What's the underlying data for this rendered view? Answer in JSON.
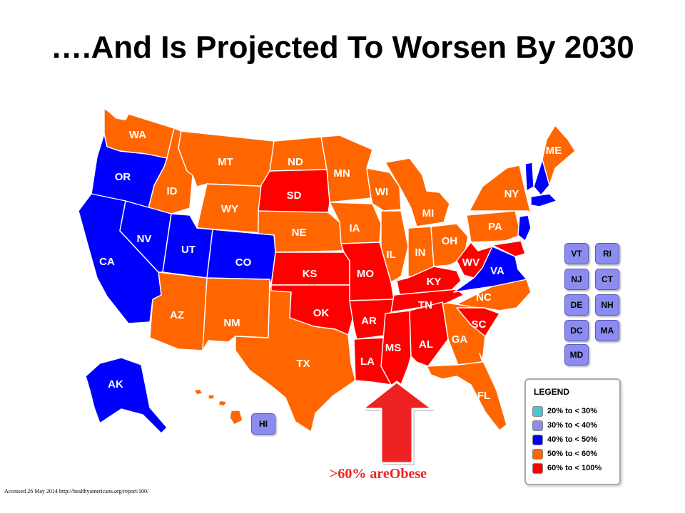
{
  "title": "….And Is Projected To Worsen By 2030",
  "colors": {
    "20_30": "#4fc4d6",
    "30_40": "#8c8cf0",
    "40_50": "#0000ff",
    "50_60": "#ff6600",
    "60_100": "#ff0000",
    "arrow": "#ee2222"
  },
  "states": {
    "WA": "WA",
    "OR": "OR",
    "CA": "CA",
    "ID": "ID",
    "NV": "NV",
    "MT": "MT",
    "WY": "WY",
    "UT": "UT",
    "AZ": "AZ",
    "CO": "CO",
    "NM": "NM",
    "ND": "ND",
    "SD": "SD",
    "NE": "NE",
    "KS": "KS",
    "OK": "OK",
    "TX": "TX",
    "MN": "MN",
    "IA": "IA",
    "MO": "MO",
    "AR": "AR",
    "LA": "LA",
    "WI": "WI",
    "IL": "IL",
    "MI": "MI",
    "IN": "IN",
    "OH": "OH",
    "KY": "KY",
    "TN": "TN",
    "MS": "MS",
    "AL": "AL",
    "GA": "GA",
    "FL": "FL",
    "SC": "SC",
    "NC": "NC",
    "VA": "VA",
    "WV": "WV",
    "PA": "PA",
    "NY": "NY",
    "ME": "ME",
    "AK": "AK"
  },
  "small_states": {
    "VT": "VT",
    "RI": "RI",
    "NJ": "NJ",
    "CT": "CT",
    "DE": "DE",
    "NH": "NH",
    "DC": "DC",
    "MA": "MA",
    "MD": "MD",
    "HI": "HI"
  },
  "legend": {
    "title": "LEGEND",
    "items": [
      {
        "label": "20% to < 30%",
        "color": "#4fc4d6"
      },
      {
        "label": "30% to < 40%",
        "color": "#8c8cf0"
      },
      {
        "label": "40% to < 50%",
        "color": "#0000ff"
      },
      {
        "label": "50% to < 60%",
        "color": "#ff6600"
      },
      {
        "label": "60% to < 100%",
        "color": "#ff0000"
      }
    ]
  },
  "annotation": ">60% areObese",
  "source": "Accessed 26 May 2014 http://healthyamericans.org/report/100/"
}
